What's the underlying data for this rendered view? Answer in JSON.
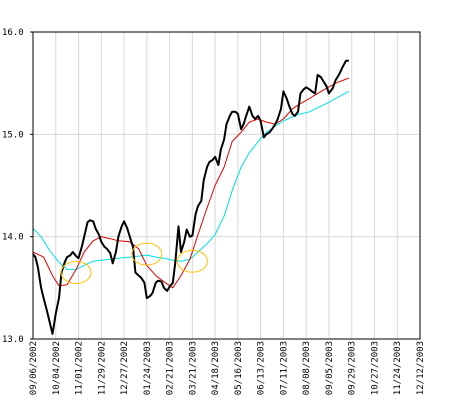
{
  "chart_data": {
    "type": "line",
    "title": "",
    "xlabel": "",
    "ylabel": "",
    "ylim": [
      13.0,
      16.0
    ],
    "yticks": [
      "13.0",
      "14.0",
      "15.0",
      "16.0"
    ],
    "yticks_values": [
      13.0,
      14.0,
      15.0,
      16.0
    ],
    "xticks": [
      "09/06/2002",
      "10/04/2002",
      "11/01/2002",
      "11/29/2002",
      "12/27/2002",
      "01/24/2003",
      "02/21/2003",
      "03/21/2003",
      "04/18/2003",
      "05/16/2003",
      "06/13/2003",
      "07/11/2003",
      "08/08/2003",
      "09/05/2003",
      "09/29/2003",
      "10/27/2003",
      "11/24/2003",
      "12/12/2003"
    ],
    "grid": true,
    "legend": "none",
    "colors": {
      "price": "#000000",
      "ma_short": "#e00000",
      "ma_long": "#00e0e0",
      "highlight": "#ffc000",
      "grid": "#d8d8d8",
      "axis": "#000000"
    },
    "series": [
      {
        "key": "price",
        "points": [
          [
            "09/06/2002",
            13.83
          ],
          [
            "09/09/2002",
            13.8
          ],
          [
            "09/12/2002",
            13.7
          ],
          [
            "09/16/2002",
            13.5
          ],
          [
            "09/19/2002",
            13.4
          ],
          [
            "09/23/2002",
            13.28
          ],
          [
            "09/26/2002",
            13.18
          ],
          [
            "09/30/2002",
            13.05
          ],
          [
            "10/04/2002",
            13.25
          ],
          [
            "10/08/2002",
            13.4
          ],
          [
            "10/11/2002",
            13.65
          ],
          [
            "10/15/2002",
            13.75
          ],
          [
            "10/18/2002",
            13.8
          ],
          [
            "10/22/2002",
            13.82
          ],
          [
            "10/25/2002",
            13.85
          ],
          [
            "10/29/2002",
            13.81
          ],
          [
            "11/01/2002",
            13.79
          ],
          [
            "11/05/2002",
            13.9
          ],
          [
            "11/08/2002",
            14.0
          ],
          [
            "11/12/2002",
            14.14
          ],
          [
            "11/15/2002",
            14.16
          ],
          [
            "11/19/2002",
            14.15
          ],
          [
            "11/22/2002",
            14.08
          ],
          [
            "11/26/2002",
            14.02
          ],
          [
            "11/29/2002",
            13.95
          ],
          [
            "12/03/2002",
            13.9
          ],
          [
            "12/06/2002",
            13.88
          ],
          [
            "12/10/2002",
            13.84
          ],
          [
            "12/13/2002",
            13.74
          ],
          [
            "12/17/2002",
            13.85
          ],
          [
            "12/20/2002",
            14.0
          ],
          [
            "12/24/2002",
            14.1
          ],
          [
            "12/27/2002",
            14.15
          ],
          [
            "12/31/2002",
            14.08
          ],
          [
            "01/03/2003",
            14.0
          ],
          [
            "01/07/2003",
            13.9
          ],
          [
            "01/10/2003",
            13.65
          ],
          [
            "01/14/2003",
            13.62
          ],
          [
            "01/17/2003",
            13.6
          ],
          [
            "01/21/2003",
            13.55
          ],
          [
            "01/24/2003",
            13.4
          ],
          [
            "01/28/2003",
            13.42
          ],
          [
            "01/31/2003",
            13.45
          ],
          [
            "02/04/2003",
            13.55
          ],
          [
            "02/07/2003",
            13.57
          ],
          [
            "02/11/2003",
            13.56
          ],
          [
            "02/14/2003",
            13.5
          ],
          [
            "02/18/2003",
            13.47
          ],
          [
            "02/21/2003",
            13.51
          ],
          [
            "02/25/2003",
            13.55
          ],
          [
            "02/28/2003",
            13.75
          ],
          [
            "03/04/2003",
            14.1
          ],
          [
            "03/07/2003",
            13.85
          ],
          [
            "03/11/2003",
            13.95
          ],
          [
            "03/14/2003",
            14.07
          ],
          [
            "03/18/2003",
            14.0
          ],
          [
            "03/21/2003",
            14.01
          ],
          [
            "03/25/2003",
            14.22
          ],
          [
            "03/28/2003",
            14.3
          ],
          [
            "04/01/2003",
            14.35
          ],
          [
            "04/04/2003",
            14.55
          ],
          [
            "04/08/2003",
            14.68
          ],
          [
            "04/11/2003",
            14.73
          ],
          [
            "04/15/2003",
            14.75
          ],
          [
            "04/18/2003",
            14.78
          ],
          [
            "04/22/2003",
            14.7
          ],
          [
            "04/25/2003",
            14.85
          ],
          [
            "04/29/2003",
            14.95
          ],
          [
            "05/02/2003",
            15.1
          ],
          [
            "05/06/2003",
            15.18
          ],
          [
            "05/09/2003",
            15.22
          ],
          [
            "05/13/2003",
            15.22
          ],
          [
            "05/16/2003",
            15.2
          ],
          [
            "05/20/2003",
            15.05
          ],
          [
            "05/23/2003",
            15.1
          ],
          [
            "05/27/2003",
            15.2
          ],
          [
            "05/30/2003",
            15.27
          ],
          [
            "06/03/2003",
            15.18
          ],
          [
            "06/06/2003",
            15.15
          ],
          [
            "06/10/2003",
            15.18
          ],
          [
            "06/13/2003",
            15.13
          ],
          [
            "06/17/2003",
            14.97
          ],
          [
            "06/20/2003",
            15.0
          ],
          [
            "06/24/2003",
            15.02
          ],
          [
            "06/27/2003",
            15.05
          ],
          [
            "07/01/2003",
            15.1
          ],
          [
            "07/04/2003",
            15.15
          ],
          [
            "07/08/2003",
            15.25
          ],
          [
            "07/11/2003",
            15.42
          ],
          [
            "07/15/2003",
            15.35
          ],
          [
            "07/18/2003",
            15.28
          ],
          [
            "07/22/2003",
            15.2
          ],
          [
            "07/25/2003",
            15.18
          ],
          [
            "07/29/2003",
            15.22
          ],
          [
            "08/01/2003",
            15.4
          ],
          [
            "08/05/2003",
            15.44
          ],
          [
            "08/08/2003",
            15.46
          ],
          [
            "08/12/2003",
            15.44
          ],
          [
            "08/15/2003",
            15.42
          ],
          [
            "08/19/2003",
            15.4
          ],
          [
            "08/22/2003",
            15.58
          ],
          [
            "08/26/2003",
            15.56
          ],
          [
            "08/29/2003",
            15.52
          ],
          [
            "09/02/2003",
            15.47
          ],
          [
            "09/05/2003",
            15.4
          ],
          [
            "09/09/2003",
            15.45
          ],
          [
            "09/12/2003",
            15.53
          ],
          [
            "09/16/2003",
            15.59
          ],
          [
            "09/19/2003",
            15.65
          ],
          [
            "09/23/2003",
            15.72
          ],
          [
            "09/26/2003",
            15.72
          ]
        ]
      },
      {
        "key": "ma_short",
        "points": [
          [
            "09/06/2002",
            13.85
          ],
          [
            "09/19/2002",
            13.8
          ],
          [
            "09/30/2002",
            13.62
          ],
          [
            "10/08/2002",
            13.52
          ],
          [
            "10/18/2002",
            13.53
          ],
          [
            "10/29/2002",
            13.68
          ],
          [
            "11/08/2002",
            13.85
          ],
          [
            "11/19/2002",
            13.96
          ],
          [
            "11/29/2002",
            14.0
          ],
          [
            "12/10/2002",
            13.98
          ],
          [
            "12/20/2002",
            13.96
          ],
          [
            "01/03/2003",
            13.95
          ],
          [
            "01/14/2003",
            13.88
          ],
          [
            "01/24/2003",
            13.72
          ],
          [
            "02/04/2003",
            13.62
          ],
          [
            "02/14/2003",
            13.56
          ],
          [
            "02/25/2003",
            13.5
          ],
          [
            "03/07/2003",
            13.62
          ],
          [
            "03/18/2003",
            13.78
          ],
          [
            "03/28/2003",
            14.02
          ],
          [
            "04/08/2003",
            14.28
          ],
          [
            "04/18/2003",
            14.5
          ],
          [
            "04/29/2003",
            14.68
          ],
          [
            "05/09/2003",
            14.93
          ],
          [
            "05/20/2003",
            15.02
          ],
          [
            "05/30/2003",
            15.12
          ],
          [
            "06/10/2003",
            15.15
          ],
          [
            "06/20/2003",
            15.12
          ],
          [
            "07/01/2003",
            15.1
          ],
          [
            "07/11/2003",
            15.15
          ],
          [
            "07/22/2003",
            15.25
          ],
          [
            "08/01/2003",
            15.3
          ],
          [
            "08/12/2003",
            15.35
          ],
          [
            "08/22/2003",
            15.4
          ],
          [
            "09/02/2003",
            15.45
          ],
          [
            "09/12/2003",
            15.5
          ],
          [
            "09/26/2003",
            15.55
          ]
        ]
      },
      {
        "key": "ma_long",
        "points": [
          [
            "09/06/2002",
            14.08
          ],
          [
            "09/16/2002",
            14.0
          ],
          [
            "09/26/2002",
            13.87
          ],
          [
            "10/08/2002",
            13.75
          ],
          [
            "10/18/2002",
            13.68
          ],
          [
            "10/29/2002",
            13.68
          ],
          [
            "11/08/2002",
            13.72
          ],
          [
            "11/19/2002",
            13.76
          ],
          [
            "11/29/2002",
            13.77
          ],
          [
            "12/10/2002",
            13.78
          ],
          [
            "12/20/2002",
            13.79
          ],
          [
            "01/03/2003",
            13.8
          ],
          [
            "01/14/2003",
            13.81
          ],
          [
            "01/24/2003",
            13.82
          ],
          [
            "02/04/2003",
            13.8
          ],
          [
            "02/14/2003",
            13.79
          ],
          [
            "02/25/2003",
            13.77
          ],
          [
            "03/07/2003",
            13.76
          ],
          [
            "03/18/2003",
            13.78
          ],
          [
            "03/28/2003",
            13.85
          ],
          [
            "04/08/2003",
            13.93
          ],
          [
            "04/18/2003",
            14.02
          ],
          [
            "04/29/2003",
            14.2
          ],
          [
            "05/09/2003",
            14.45
          ],
          [
            "05/20/2003",
            14.68
          ],
          [
            "05/30/2003",
            14.82
          ],
          [
            "06/10/2003",
            14.93
          ],
          [
            "06/20/2003",
            15.02
          ],
          [
            "07/01/2003",
            15.08
          ],
          [
            "07/11/2003",
            15.13
          ],
          [
            "07/22/2003",
            15.17
          ],
          [
            "08/01/2003",
            15.2
          ],
          [
            "08/12/2003",
            15.22
          ],
          [
            "08/22/2003",
            15.26
          ],
          [
            "09/02/2003",
            15.3
          ],
          [
            "09/12/2003",
            15.35
          ],
          [
            "09/26/2003",
            15.42
          ]
        ]
      }
    ],
    "annotations": [
      {
        "type": "ellipse",
        "x": "10/29/2002",
        "y": 13.65
      },
      {
        "type": "ellipse",
        "x": "01/24/2003",
        "y": 13.83
      },
      {
        "type": "ellipse",
        "x": "03/21/2003",
        "y": 13.76
      }
    ]
  }
}
